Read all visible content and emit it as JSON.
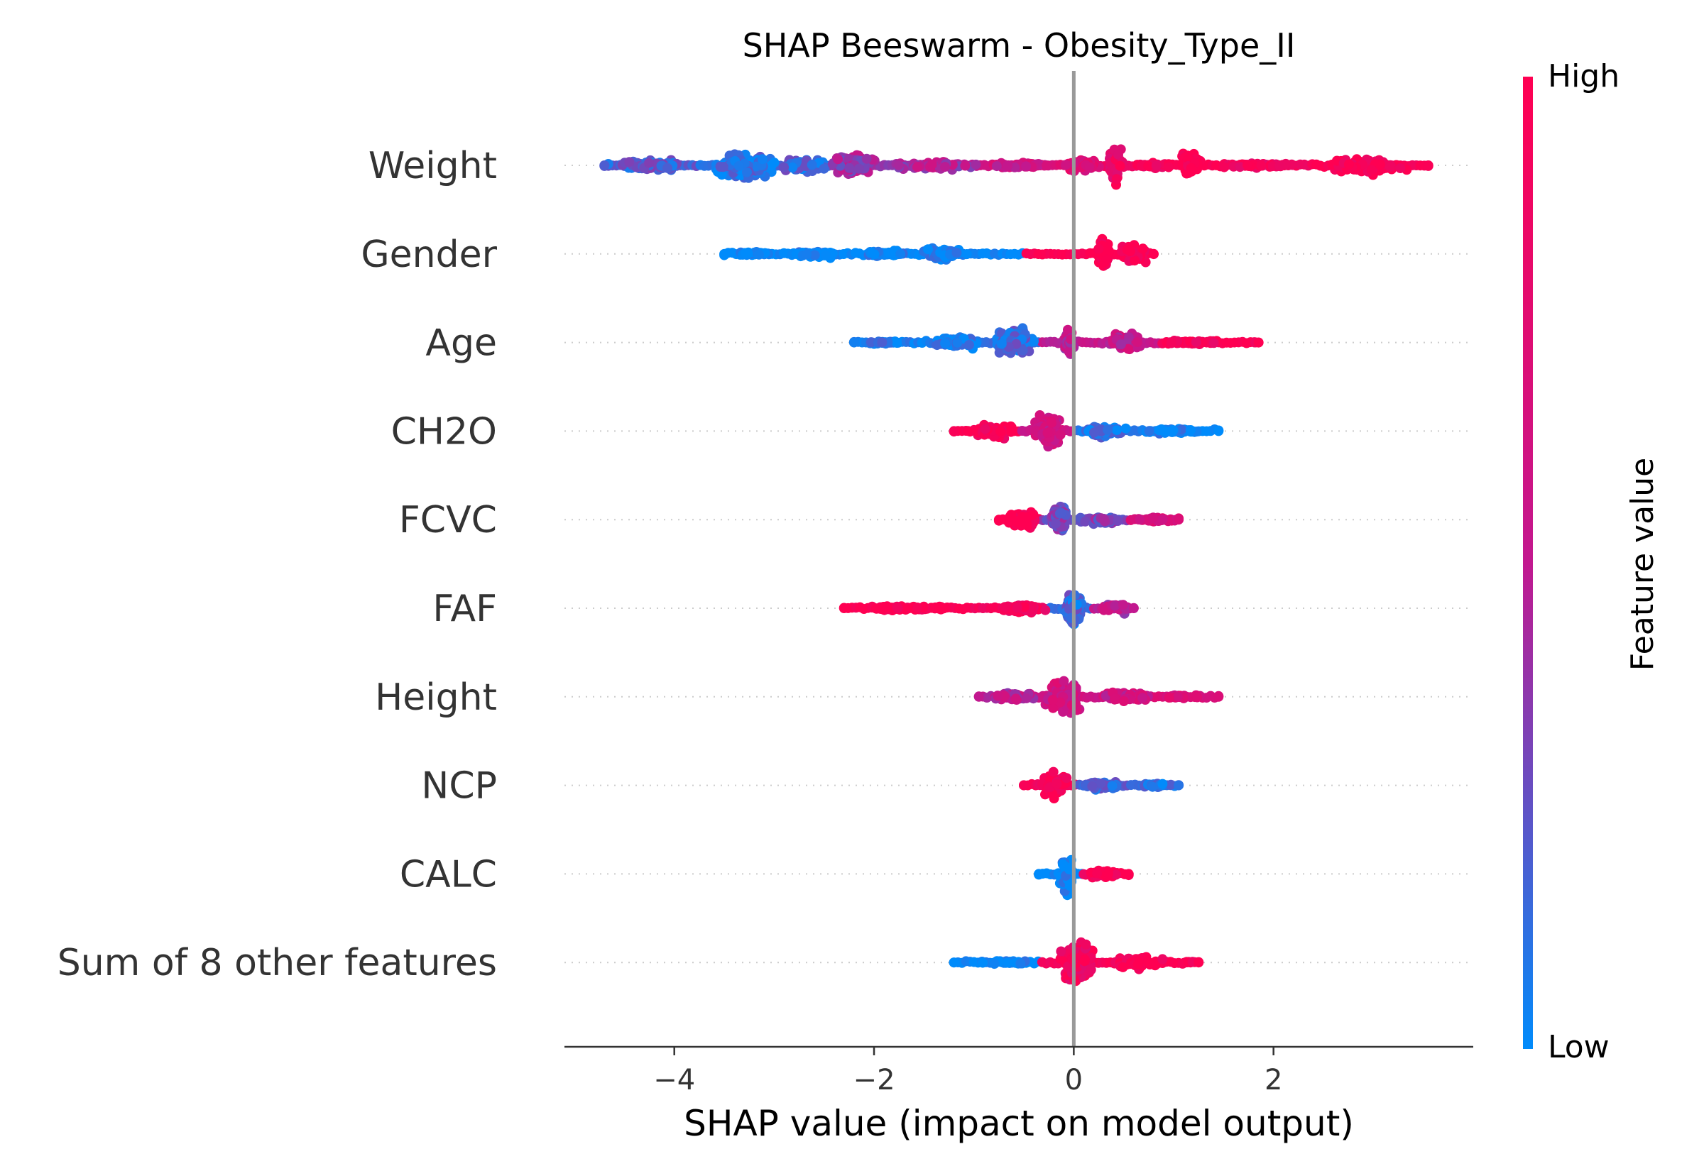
{
  "chart_data": {
    "type": "scatter",
    "subtype": "beeswarm",
    "title": "SHAP Beeswarm - Obesity_Type_II",
    "xlabel": "SHAP value (impact on model output)",
    "ylabel": "",
    "xlim": [
      -5.1,
      4.0
    ],
    "xticks": [
      -4,
      -2,
      0,
      2
    ],
    "xtick_labels": [
      "−4",
      "−2",
      "0",
      "2"
    ],
    "zero_line": 0,
    "grid": false,
    "colorbar": {
      "label": "Feature value",
      "high_label": "High",
      "low_label": "Low",
      "high_color": "#ff0052",
      "mid_color": "#c2188f",
      "low_color": "#008bfb"
    },
    "features": [
      {
        "name": "Weight",
        "min_shap": -4.7,
        "max_shap": 3.55,
        "clusters": [
          {
            "x": -4.2,
            "w": 0.55,
            "h": 0.22,
            "color": 0.2,
            "n": 70
          },
          {
            "x": -3.3,
            "w": 0.45,
            "h": 0.48,
            "color": 0.1,
            "n": 150
          },
          {
            "x": -2.7,
            "w": 0.35,
            "h": 0.28,
            "color": 0.15,
            "n": 60
          },
          {
            "x": -2.2,
            "w": 0.35,
            "h": 0.38,
            "color": 0.4,
            "n": 90
          },
          {
            "x": -1.4,
            "w": 0.6,
            "h": 0.18,
            "color": 0.45,
            "n": 60
          },
          {
            "x": -0.5,
            "w": 0.5,
            "h": 0.1,
            "color": 0.6,
            "n": 40
          },
          {
            "x": 0.1,
            "w": 0.3,
            "h": 0.25,
            "color": 0.7,
            "n": 40
          },
          {
            "x": 0.42,
            "w": 0.1,
            "h": 0.62,
            "color": 0.85,
            "n": 60
          },
          {
            "x": 0.8,
            "w": 0.25,
            "h": 0.12,
            "color": 0.9,
            "n": 30
          },
          {
            "x": 1.17,
            "w": 0.14,
            "h": 0.45,
            "color": 1.0,
            "n": 60
          },
          {
            "x": 1.9,
            "w": 0.55,
            "h": 0.1,
            "color": 0.9,
            "n": 40
          },
          {
            "x": 2.9,
            "w": 0.55,
            "h": 0.3,
            "color": 0.97,
            "n": 120
          }
        ]
      },
      {
        "name": "Gender",
        "min_shap": -3.5,
        "max_shap": 0.8,
        "clusters": [
          {
            "x": -3.2,
            "w": 0.3,
            "h": 0.08,
            "color": 0.0,
            "n": 30
          },
          {
            "x": -2.6,
            "w": 0.35,
            "h": 0.14,
            "color": 0.0,
            "n": 60
          },
          {
            "x": -1.9,
            "w": 0.35,
            "h": 0.12,
            "color": 0.0,
            "n": 50
          },
          {
            "x": -1.3,
            "w": 0.3,
            "h": 0.22,
            "color": 0.0,
            "n": 80
          },
          {
            "x": 0.3,
            "w": 0.12,
            "h": 0.5,
            "color": 1.0,
            "n": 80
          },
          {
            "x": 0.6,
            "w": 0.2,
            "h": 0.35,
            "color": 1.0,
            "n": 60
          }
        ]
      },
      {
        "name": "Age",
        "min_shap": -2.2,
        "max_shap": 1.85,
        "clusters": [
          {
            "x": -1.9,
            "w": 0.3,
            "h": 0.06,
            "color": 0.05,
            "n": 20
          },
          {
            "x": -1.2,
            "w": 0.35,
            "h": 0.2,
            "color": 0.05,
            "n": 60
          },
          {
            "x": -0.6,
            "w": 0.25,
            "h": 0.5,
            "color": 0.15,
            "n": 120
          },
          {
            "x": -0.05,
            "w": 0.08,
            "h": 0.55,
            "color": 0.5,
            "n": 50
          },
          {
            "x": 0.5,
            "w": 0.25,
            "h": 0.35,
            "color": 0.55,
            "n": 70
          },
          {
            "x": 1.2,
            "w": 0.4,
            "h": 0.08,
            "color": 0.95,
            "n": 40
          },
          {
            "x": 1.82,
            "w": 0.03,
            "h": 0.02,
            "color": 1.0,
            "n": 2
          }
        ]
      },
      {
        "name": "CH2O",
        "min_shap": -1.2,
        "max_shap": 1.45,
        "clusters": [
          {
            "x": -0.8,
            "w": 0.35,
            "h": 0.25,
            "color": 0.95,
            "n": 60
          },
          {
            "x": -0.25,
            "w": 0.2,
            "h": 0.6,
            "color": 0.6,
            "n": 110
          },
          {
            "x": 0.3,
            "w": 0.3,
            "h": 0.22,
            "color": 0.1,
            "n": 60
          },
          {
            "x": 1.0,
            "w": 0.45,
            "h": 0.1,
            "color": 0.0,
            "n": 50
          }
        ]
      },
      {
        "name": "FCVC",
        "min_shap": -0.75,
        "max_shap": 1.05,
        "clusters": [
          {
            "x": -0.5,
            "w": 0.25,
            "h": 0.35,
            "color": 1.0,
            "n": 70
          },
          {
            "x": -0.15,
            "w": 0.15,
            "h": 0.55,
            "color": 0.3,
            "n": 90
          },
          {
            "x": 0.3,
            "w": 0.3,
            "h": 0.18,
            "color": 0.3,
            "n": 40
          },
          {
            "x": 0.8,
            "w": 0.3,
            "h": 0.1,
            "color": 0.7,
            "n": 25
          }
        ]
      },
      {
        "name": "FAF",
        "min_shap": -2.3,
        "max_shap": 0.6,
        "clusters": [
          {
            "x": -1.6,
            "w": 0.7,
            "h": 0.1,
            "color": 1.0,
            "n": 60
          },
          {
            "x": -0.5,
            "w": 0.35,
            "h": 0.18,
            "color": 0.9,
            "n": 50
          },
          {
            "x": 0.0,
            "w": 0.12,
            "h": 0.6,
            "color": 0.15,
            "n": 90
          },
          {
            "x": 0.4,
            "w": 0.2,
            "h": 0.18,
            "color": 0.5,
            "n": 40
          }
        ]
      },
      {
        "name": "Height",
        "min_shap": -0.95,
        "max_shap": 1.45,
        "clusters": [
          {
            "x": -0.6,
            "w": 0.3,
            "h": 0.2,
            "color": 0.5,
            "n": 50
          },
          {
            "x": -0.1,
            "w": 0.25,
            "h": 0.6,
            "color": 0.6,
            "n": 130
          },
          {
            "x": 0.5,
            "w": 0.35,
            "h": 0.2,
            "color": 0.6,
            "n": 60
          },
          {
            "x": 1.1,
            "w": 0.25,
            "h": 0.08,
            "color": 0.7,
            "n": 20
          }
        ]
      },
      {
        "name": "NCP",
        "min_shap": -0.5,
        "max_shap": 1.05,
        "clusters": [
          {
            "x": -0.2,
            "w": 0.2,
            "h": 0.5,
            "color": 0.95,
            "n": 100
          },
          {
            "x": 0.3,
            "w": 0.25,
            "h": 0.14,
            "color": 0.2,
            "n": 50
          },
          {
            "x": 0.8,
            "w": 0.25,
            "h": 0.08,
            "color": 0.1,
            "n": 25
          }
        ]
      },
      {
        "name": "CALC",
        "min_shap": -0.35,
        "max_shap": 0.55,
        "clusters": [
          {
            "x": -0.07,
            "w": 0.1,
            "h": 0.75,
            "color": 0.0,
            "n": 90
          },
          {
            "x": 0.3,
            "w": 0.22,
            "h": 0.14,
            "color": 1.0,
            "n": 50
          }
        ]
      },
      {
        "name": "Sum of 8 other features",
        "min_shap": -1.2,
        "max_shap": 1.25,
        "clusters": [
          {
            "x": -0.7,
            "w": 0.4,
            "h": 0.08,
            "color": 0.0,
            "n": 30
          },
          {
            "x": 0.05,
            "w": 0.25,
            "h": 0.75,
            "color": 0.9,
            "n": 160
          },
          {
            "x": 0.6,
            "w": 0.35,
            "h": 0.22,
            "color": 1.0,
            "n": 60
          },
          {
            "x": 1.15,
            "w": 0.1,
            "h": 0.06,
            "color": 1.0,
            "n": 6
          }
        ]
      }
    ]
  }
}
